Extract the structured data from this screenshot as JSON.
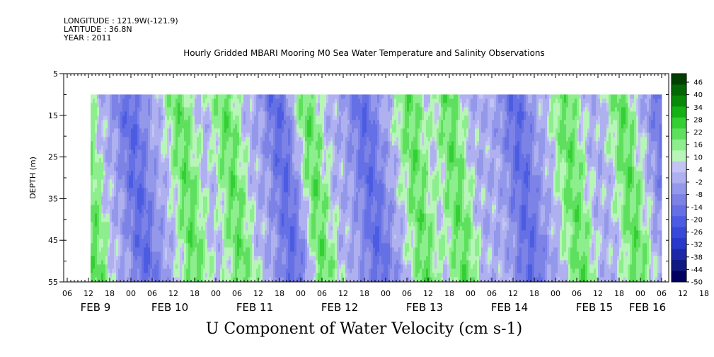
{
  "header": {
    "longitude": "LONGITUDE : 121.9W(-121.9)",
    "latitude": "LATITUDE : 36.8N",
    "year": "YEAR : 2011"
  },
  "chart_data": {
    "type": "heatmap",
    "title": "Hourly Gridded MBARI Mooring M0 Sea Water Temperature and Salinity Observations",
    "xlabel": "U Component of Water Velocity (cm s-1)",
    "ylabel": "DEPTH (m)",
    "ylim": [
      55,
      5
    ],
    "y_ticks": [
      5,
      15,
      25,
      35,
      45,
      55
    ],
    "data_depth_range": [
      10,
      55
    ],
    "x_hour_labels": [
      "06",
      "12",
      "18",
      "00",
      "06",
      "12",
      "18",
      "00",
      "06",
      "12",
      "18",
      "00",
      "06",
      "12",
      "18",
      "00",
      "06",
      "12",
      "18",
      "00",
      "06",
      "12",
      "18",
      "00",
      "06",
      "12",
      "18",
      "00",
      "06",
      "12",
      "18",
      "00"
    ],
    "x_day_labels": [
      "FEB  9",
      "FEB 10",
      "FEB 11",
      "FEB 12",
      "FEB 13",
      "FEB 14",
      "FEB 15",
      "FEB 16"
    ],
    "colorbar": {
      "levels": [
        46,
        40,
        34,
        28,
        22,
        16,
        10,
        4,
        -2,
        -8,
        -14,
        -20,
        -26,
        -32,
        -38,
        -44,
        -50
      ],
      "min": -50,
      "max": 52,
      "positive_colors": [
        "#b8f5b8",
        "#8cee8c",
        "#5ee05e",
        "#34cf34",
        "#14b014",
        "#088a08",
        "#046604",
        "#024002"
      ],
      "negative_colors": [
        "#c4c4f4",
        "#aeb0f0",
        "#9498ea",
        "#7c82e6",
        "#6470e4",
        "#4c5ce2",
        "#3848d8",
        "#2838c8",
        "#1c28a8",
        "#101a80",
        "#000060"
      ]
    },
    "field_note": "Alternating bands of positive (green, ~4 to 16) and negative (blue, ~-2 to -26) values tilted with depth over Feb 9-16 2011",
    "band_centers_hours": [
      3,
      17,
      31,
      44,
      59,
      67,
      83,
      96,
      107,
      126,
      140,
      156,
      168
    ],
    "band_signs": [
      1,
      -1,
      1,
      1,
      -1,
      1,
      -1,
      1,
      1,
      -1,
      1,
      1,
      -1
    ]
  }
}
